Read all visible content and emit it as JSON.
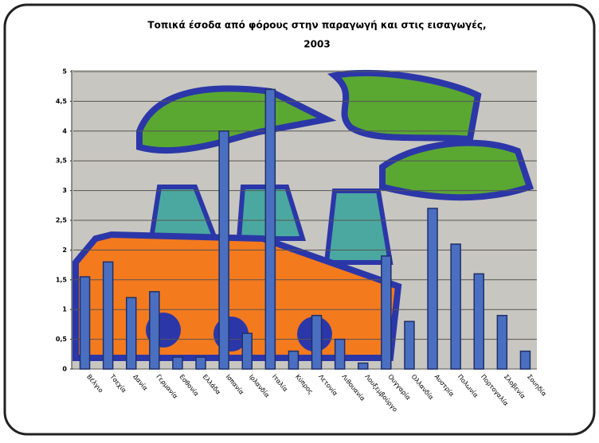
{
  "chart_data": {
    "type": "bar",
    "title": "Τοπικά έσοδα από φόρους στην παραγωγή και στις εισαγωγές,",
    "subtitle": "2003",
    "categories": [
      "Βέλγιο",
      "Τσεχία",
      "Δανία",
      "Γερμανία",
      "Εσθονία",
      "Ελλάδα",
      "Ισπανία",
      "Ιρλανδία",
      "Ιταλία",
      "Κύπρος",
      "Λετονία",
      "Λιθουανία",
      "Λουξεμβούργο",
      "Ουγγαρία",
      "Ολλανδία",
      "Αυστρία",
      "Πολωνία",
      "Πορτογαλία",
      "Σλοβενία",
      "Σουηδία"
    ],
    "values": [
      1.55,
      1.8,
      1.2,
      1.3,
      0.2,
      0.2,
      4.0,
      0.6,
      4.7,
      0.3,
      0.9,
      0.5,
      0.1,
      1.9,
      0.8,
      2.7,
      2.1,
      1.6,
      0.9,
      0.3
    ],
    "color": "#4a6fc0",
    "ylim": [
      0,
      5
    ],
    "yticks": [
      0,
      {
        "value": 0.5,
        "label": "0,5"
      },
      1,
      {
        "value": 1.5,
        "label": "1,5"
      },
      2,
      {
        "value": 2.5,
        "label": "2,5"
      },
      3,
      {
        "value": 3.5,
        "label": "3,5"
      },
      4,
      {
        "value": 4.5,
        "label": "4,5"
      },
      5
    ],
    "grid": true
  }
}
